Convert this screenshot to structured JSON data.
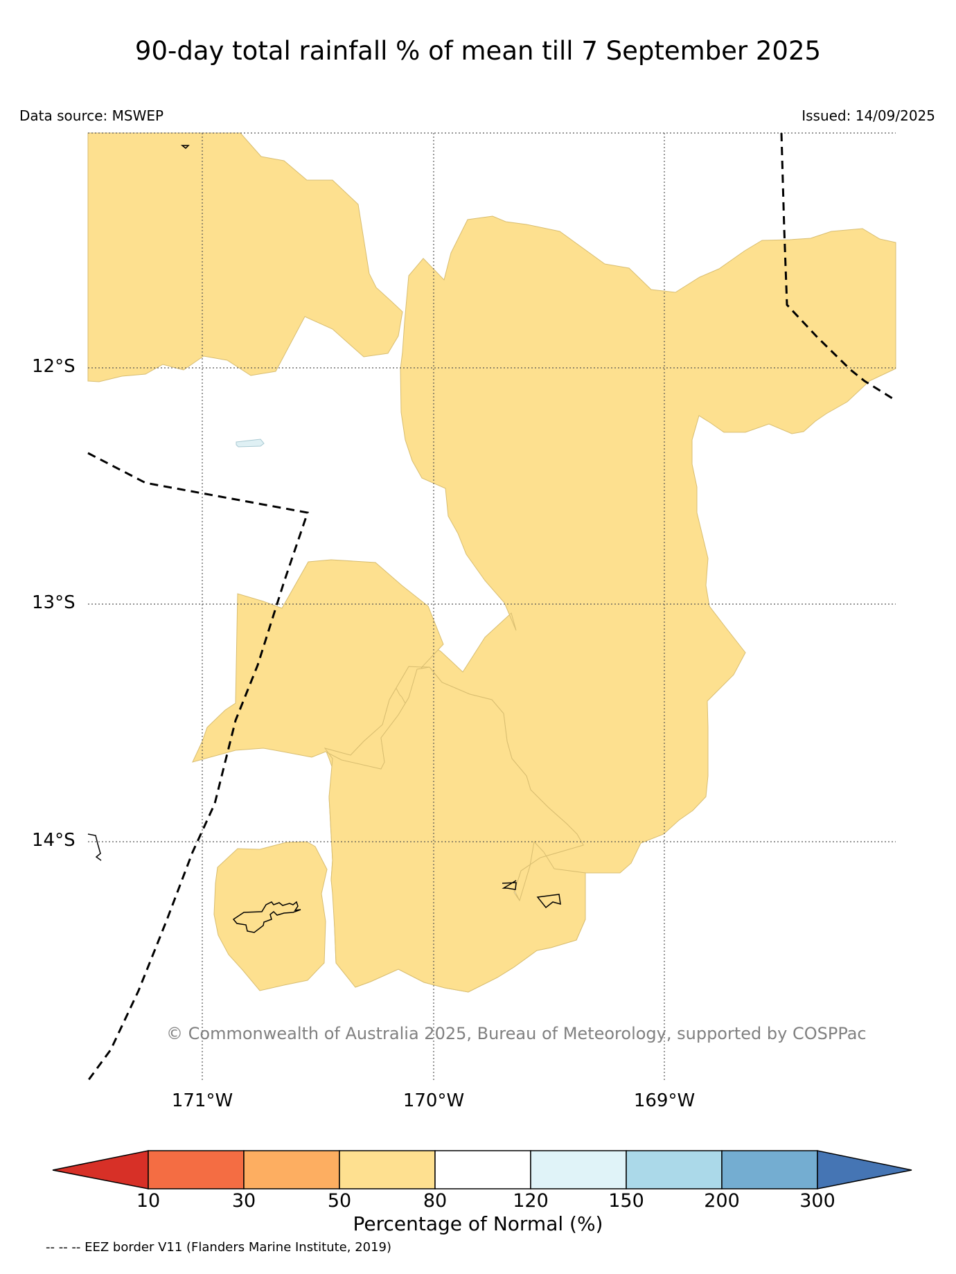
{
  "title": "90-day total rainfall % of mean till 7 September 2025",
  "source": "Data source: MSWEP",
  "issued": "Issued: 14/09/2025",
  "copyright": "© Commonwealth of Australia 2025, Bureau of Meteorology, supported by COSPPac",
  "eez_note": "-- -- -- EEZ border V11 (Flanders Marine Institute, 2019)",
  "latitude_labels": [
    "12°S",
    "13°S",
    "14°S"
  ],
  "longitude_labels": [
    "171°W",
    "170°W",
    "169°W"
  ],
  "colorbar": {
    "title": "Percentage of Normal (%)",
    "ticks": [
      "10",
      "30",
      "50",
      "80",
      "120",
      "150",
      "200",
      "300"
    ],
    "bins": [
      {
        "range": "<10",
        "color": "#d73027"
      },
      {
        "range": "10-30",
        "color": "#f46d43"
      },
      {
        "range": "30-50",
        "color": "#fdae61"
      },
      {
        "range": "50-80",
        "color": "#fee090"
      },
      {
        "range": "80-120",
        "color": "#ffffff"
      },
      {
        "range": "120-150",
        "color": "#e0f3f8"
      },
      {
        "range": "150-200",
        "color": "#abd9e9"
      },
      {
        "range": "200-300",
        "color": "#74add1"
      },
      {
        "range": ">300",
        "color": "#4575b4"
      }
    ]
  },
  "map_colors": {
    "dry_50_80": "#fde08f",
    "wet_120_150": "#dff0f4"
  }
}
